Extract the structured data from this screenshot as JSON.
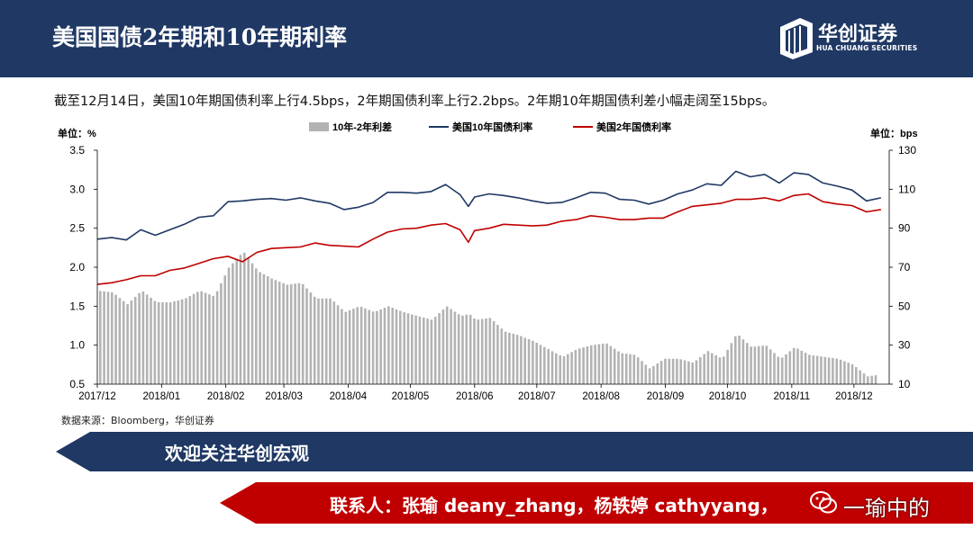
{
  "header": {
    "title": "美国国债2年期和10年期利率",
    "logo_cn": "华创证券",
    "logo_en": "HUA CHUANG SECURITIES"
  },
  "description": "截至12月14日，美国10年期国债利率上行4.5bps，2年期国债利率上行2.2bps。2年期10年期国债利差小幅走阔至15bps。",
  "source": "数据来源：Bloomberg，华创证券",
  "banner1": "欢迎关注华创宏观",
  "banner2": "联系人：张瑜 deany_zhang，杨轶婷 cathyyang，",
  "watermark": "一瑜中的",
  "colors": {
    "navy": "#1f3864",
    "red": "#c00000",
    "bar": "#b3b3b3",
    "line10y": "#1f3864",
    "line2y": "#c00000"
  },
  "chart_data": {
    "type": "bar+line",
    "left_unit": "单位：%",
    "right_unit": "单位：bps",
    "legend": [
      "10年-2年利差",
      "美国10年国债利率",
      "美国2年国债利率"
    ],
    "legend_position": "top-center",
    "grid": false,
    "ylim_left": [
      0.5,
      3.5
    ],
    "yticks_left": [
      "0.5",
      "1.0",
      "1.5",
      "2.0",
      "2.5",
      "3.0",
      "3.5"
    ],
    "ylim_right": [
      10,
      130
    ],
    "yticks_right": [
      "10",
      "30",
      "50",
      "70",
      "90",
      "110",
      "130"
    ],
    "xticks": [
      "2017/12",
      "2018/01",
      "2018/02",
      "2018/03",
      "2018/04",
      "2018/05",
      "2018/06",
      "2018/07",
      "2018/08",
      "2018/09",
      "2018/10",
      "2018/11",
      "2018/12"
    ],
    "x_start": "2017-12-01",
    "x_end": "2018-12-14",
    "series_10y": {
      "name": "美国10年国债利率",
      "points": [
        [
          "2017-12-01",
          2.36
        ],
        [
          "2017-12-08",
          2.38
        ],
        [
          "2017-12-15",
          2.35
        ],
        [
          "2017-12-22",
          2.48
        ],
        [
          "2017-12-29",
          2.41
        ],
        [
          "2018-01-05",
          2.48
        ],
        [
          "2018-01-12",
          2.55
        ],
        [
          "2018-01-19",
          2.64
        ],
        [
          "2018-01-26",
          2.66
        ],
        [
          "2018-02-02",
          2.84
        ],
        [
          "2018-02-09",
          2.85
        ],
        [
          "2018-02-16",
          2.87
        ],
        [
          "2018-02-23",
          2.88
        ],
        [
          "2018-03-02",
          2.86
        ],
        [
          "2018-03-09",
          2.89
        ],
        [
          "2018-03-16",
          2.85
        ],
        [
          "2018-03-23",
          2.82
        ],
        [
          "2018-03-30",
          2.74
        ],
        [
          "2018-04-06",
          2.77
        ],
        [
          "2018-04-13",
          2.83
        ],
        [
          "2018-04-20",
          2.96
        ],
        [
          "2018-04-27",
          2.96
        ],
        [
          "2018-05-04",
          2.95
        ],
        [
          "2018-05-11",
          2.97
        ],
        [
          "2018-05-18",
          3.06
        ],
        [
          "2018-05-25",
          2.93
        ],
        [
          "2018-05-29",
          2.78
        ],
        [
          "2018-06-01",
          2.9
        ],
        [
          "2018-06-08",
          2.94
        ],
        [
          "2018-06-15",
          2.92
        ],
        [
          "2018-06-22",
          2.89
        ],
        [
          "2018-06-29",
          2.85
        ],
        [
          "2018-07-06",
          2.82
        ],
        [
          "2018-07-13",
          2.83
        ],
        [
          "2018-07-20",
          2.89
        ],
        [
          "2018-07-27",
          2.96
        ],
        [
          "2018-08-03",
          2.95
        ],
        [
          "2018-08-10",
          2.87
        ],
        [
          "2018-08-17",
          2.86
        ],
        [
          "2018-08-24",
          2.81
        ],
        [
          "2018-08-31",
          2.86
        ],
        [
          "2018-09-07",
          2.94
        ],
        [
          "2018-09-14",
          2.99
        ],
        [
          "2018-09-21",
          3.07
        ],
        [
          "2018-09-28",
          3.05
        ],
        [
          "2018-10-05",
          3.23
        ],
        [
          "2018-10-12",
          3.16
        ],
        [
          "2018-10-19",
          3.19
        ],
        [
          "2018-10-26",
          3.08
        ],
        [
          "2018-11-02",
          3.21
        ],
        [
          "2018-11-09",
          3.19
        ],
        [
          "2018-11-16",
          3.08
        ],
        [
          "2018-11-23",
          3.04
        ],
        [
          "2018-11-30",
          2.99
        ],
        [
          "2018-12-07",
          2.85
        ],
        [
          "2018-12-14",
          2.89
        ]
      ]
    },
    "series_2y": {
      "name": "美国2年国债利率",
      "points": [
        [
          "2017-12-01",
          1.78
        ],
        [
          "2017-12-08",
          1.8
        ],
        [
          "2017-12-15",
          1.84
        ],
        [
          "2017-12-22",
          1.89
        ],
        [
          "2017-12-29",
          1.89
        ],
        [
          "2018-01-05",
          1.96
        ],
        [
          "2018-01-12",
          1.99
        ],
        [
          "2018-01-19",
          2.05
        ],
        [
          "2018-01-26",
          2.11
        ],
        [
          "2018-02-02",
          2.14
        ],
        [
          "2018-02-09",
          2.07
        ],
        [
          "2018-02-16",
          2.19
        ],
        [
          "2018-02-23",
          2.24
        ],
        [
          "2018-03-02",
          2.25
        ],
        [
          "2018-03-09",
          2.26
        ],
        [
          "2018-03-16",
          2.31
        ],
        [
          "2018-03-23",
          2.28
        ],
        [
          "2018-03-30",
          2.27
        ],
        [
          "2018-04-06",
          2.26
        ],
        [
          "2018-04-13",
          2.36
        ],
        [
          "2018-04-20",
          2.45
        ],
        [
          "2018-04-27",
          2.49
        ],
        [
          "2018-05-04",
          2.5
        ],
        [
          "2018-05-11",
          2.54
        ],
        [
          "2018-05-18",
          2.56
        ],
        [
          "2018-05-25",
          2.48
        ],
        [
          "2018-05-29",
          2.32
        ],
        [
          "2018-06-01",
          2.47
        ],
        [
          "2018-06-08",
          2.5
        ],
        [
          "2018-06-15",
          2.55
        ],
        [
          "2018-06-22",
          2.54
        ],
        [
          "2018-06-29",
          2.53
        ],
        [
          "2018-07-06",
          2.54
        ],
        [
          "2018-07-13",
          2.59
        ],
        [
          "2018-07-20",
          2.61
        ],
        [
          "2018-07-27",
          2.66
        ],
        [
          "2018-08-03",
          2.64
        ],
        [
          "2018-08-10",
          2.61
        ],
        [
          "2018-08-17",
          2.61
        ],
        [
          "2018-08-24",
          2.63
        ],
        [
          "2018-08-31",
          2.63
        ],
        [
          "2018-09-07",
          2.71
        ],
        [
          "2018-09-14",
          2.78
        ],
        [
          "2018-09-21",
          2.8
        ],
        [
          "2018-09-28",
          2.82
        ],
        [
          "2018-10-05",
          2.87
        ],
        [
          "2018-10-12",
          2.87
        ],
        [
          "2018-10-19",
          2.89
        ],
        [
          "2018-10-26",
          2.85
        ],
        [
          "2018-11-02",
          2.92
        ],
        [
          "2018-11-09",
          2.94
        ],
        [
          "2018-11-16",
          2.84
        ],
        [
          "2018-11-23",
          2.81
        ],
        [
          "2018-11-30",
          2.79
        ],
        [
          "2018-12-07",
          2.71
        ],
        [
          "2018-12-14",
          2.74
        ]
      ]
    },
    "series_spread": {
      "name": "10年-2年利差",
      "points": [
        [
          "2017-12-01",
          58
        ],
        [
          "2017-12-08",
          57
        ],
        [
          "2017-12-15",
          51
        ],
        [
          "2017-12-22",
          58
        ],
        [
          "2017-12-29",
          52
        ],
        [
          "2018-01-05",
          52
        ],
        [
          "2018-01-12",
          54
        ],
        [
          "2018-01-19",
          58
        ],
        [
          "2018-01-26",
          55
        ],
        [
          "2018-02-02",
          70
        ],
        [
          "2018-02-09",
          78
        ],
        [
          "2018-02-16",
          68
        ],
        [
          "2018-02-23",
          64
        ],
        [
          "2018-03-02",
          61
        ],
        [
          "2018-03-09",
          62
        ],
        [
          "2018-03-16",
          54
        ],
        [
          "2018-03-23",
          54
        ],
        [
          "2018-03-30",
          47
        ],
        [
          "2018-04-06",
          50
        ],
        [
          "2018-04-13",
          47
        ],
        [
          "2018-04-20",
          50
        ],
        [
          "2018-04-27",
          47
        ],
        [
          "2018-05-04",
          45
        ],
        [
          "2018-05-11",
          43
        ],
        [
          "2018-05-18",
          50
        ],
        [
          "2018-05-25",
          45
        ],
        [
          "2018-05-29",
          46
        ],
        [
          "2018-06-01",
          43
        ],
        [
          "2018-06-08",
          44
        ],
        [
          "2018-06-15",
          37
        ],
        [
          "2018-06-22",
          35
        ],
        [
          "2018-06-29",
          32
        ],
        [
          "2018-07-06",
          28
        ],
        [
          "2018-07-13",
          24
        ],
        [
          "2018-07-20",
          28
        ],
        [
          "2018-07-27",
          30
        ],
        [
          "2018-08-03",
          31
        ],
        [
          "2018-08-10",
          26
        ],
        [
          "2018-08-17",
          25
        ],
        [
          "2018-08-24",
          18
        ],
        [
          "2018-08-31",
          23
        ],
        [
          "2018-09-07",
          23
        ],
        [
          "2018-09-14",
          21
        ],
        [
          "2018-09-21",
          27
        ],
        [
          "2018-09-28",
          23
        ],
        [
          "2018-10-05",
          36
        ],
        [
          "2018-10-12",
          29
        ],
        [
          "2018-10-19",
          30
        ],
        [
          "2018-10-26",
          23
        ],
        [
          "2018-11-02",
          29
        ],
        [
          "2018-11-09",
          25
        ],
        [
          "2018-11-16",
          24
        ],
        [
          "2018-11-23",
          23
        ],
        [
          "2018-11-30",
          20
        ],
        [
          "2018-12-07",
          14
        ],
        [
          "2018-12-14",
          15
        ]
      ]
    }
  }
}
